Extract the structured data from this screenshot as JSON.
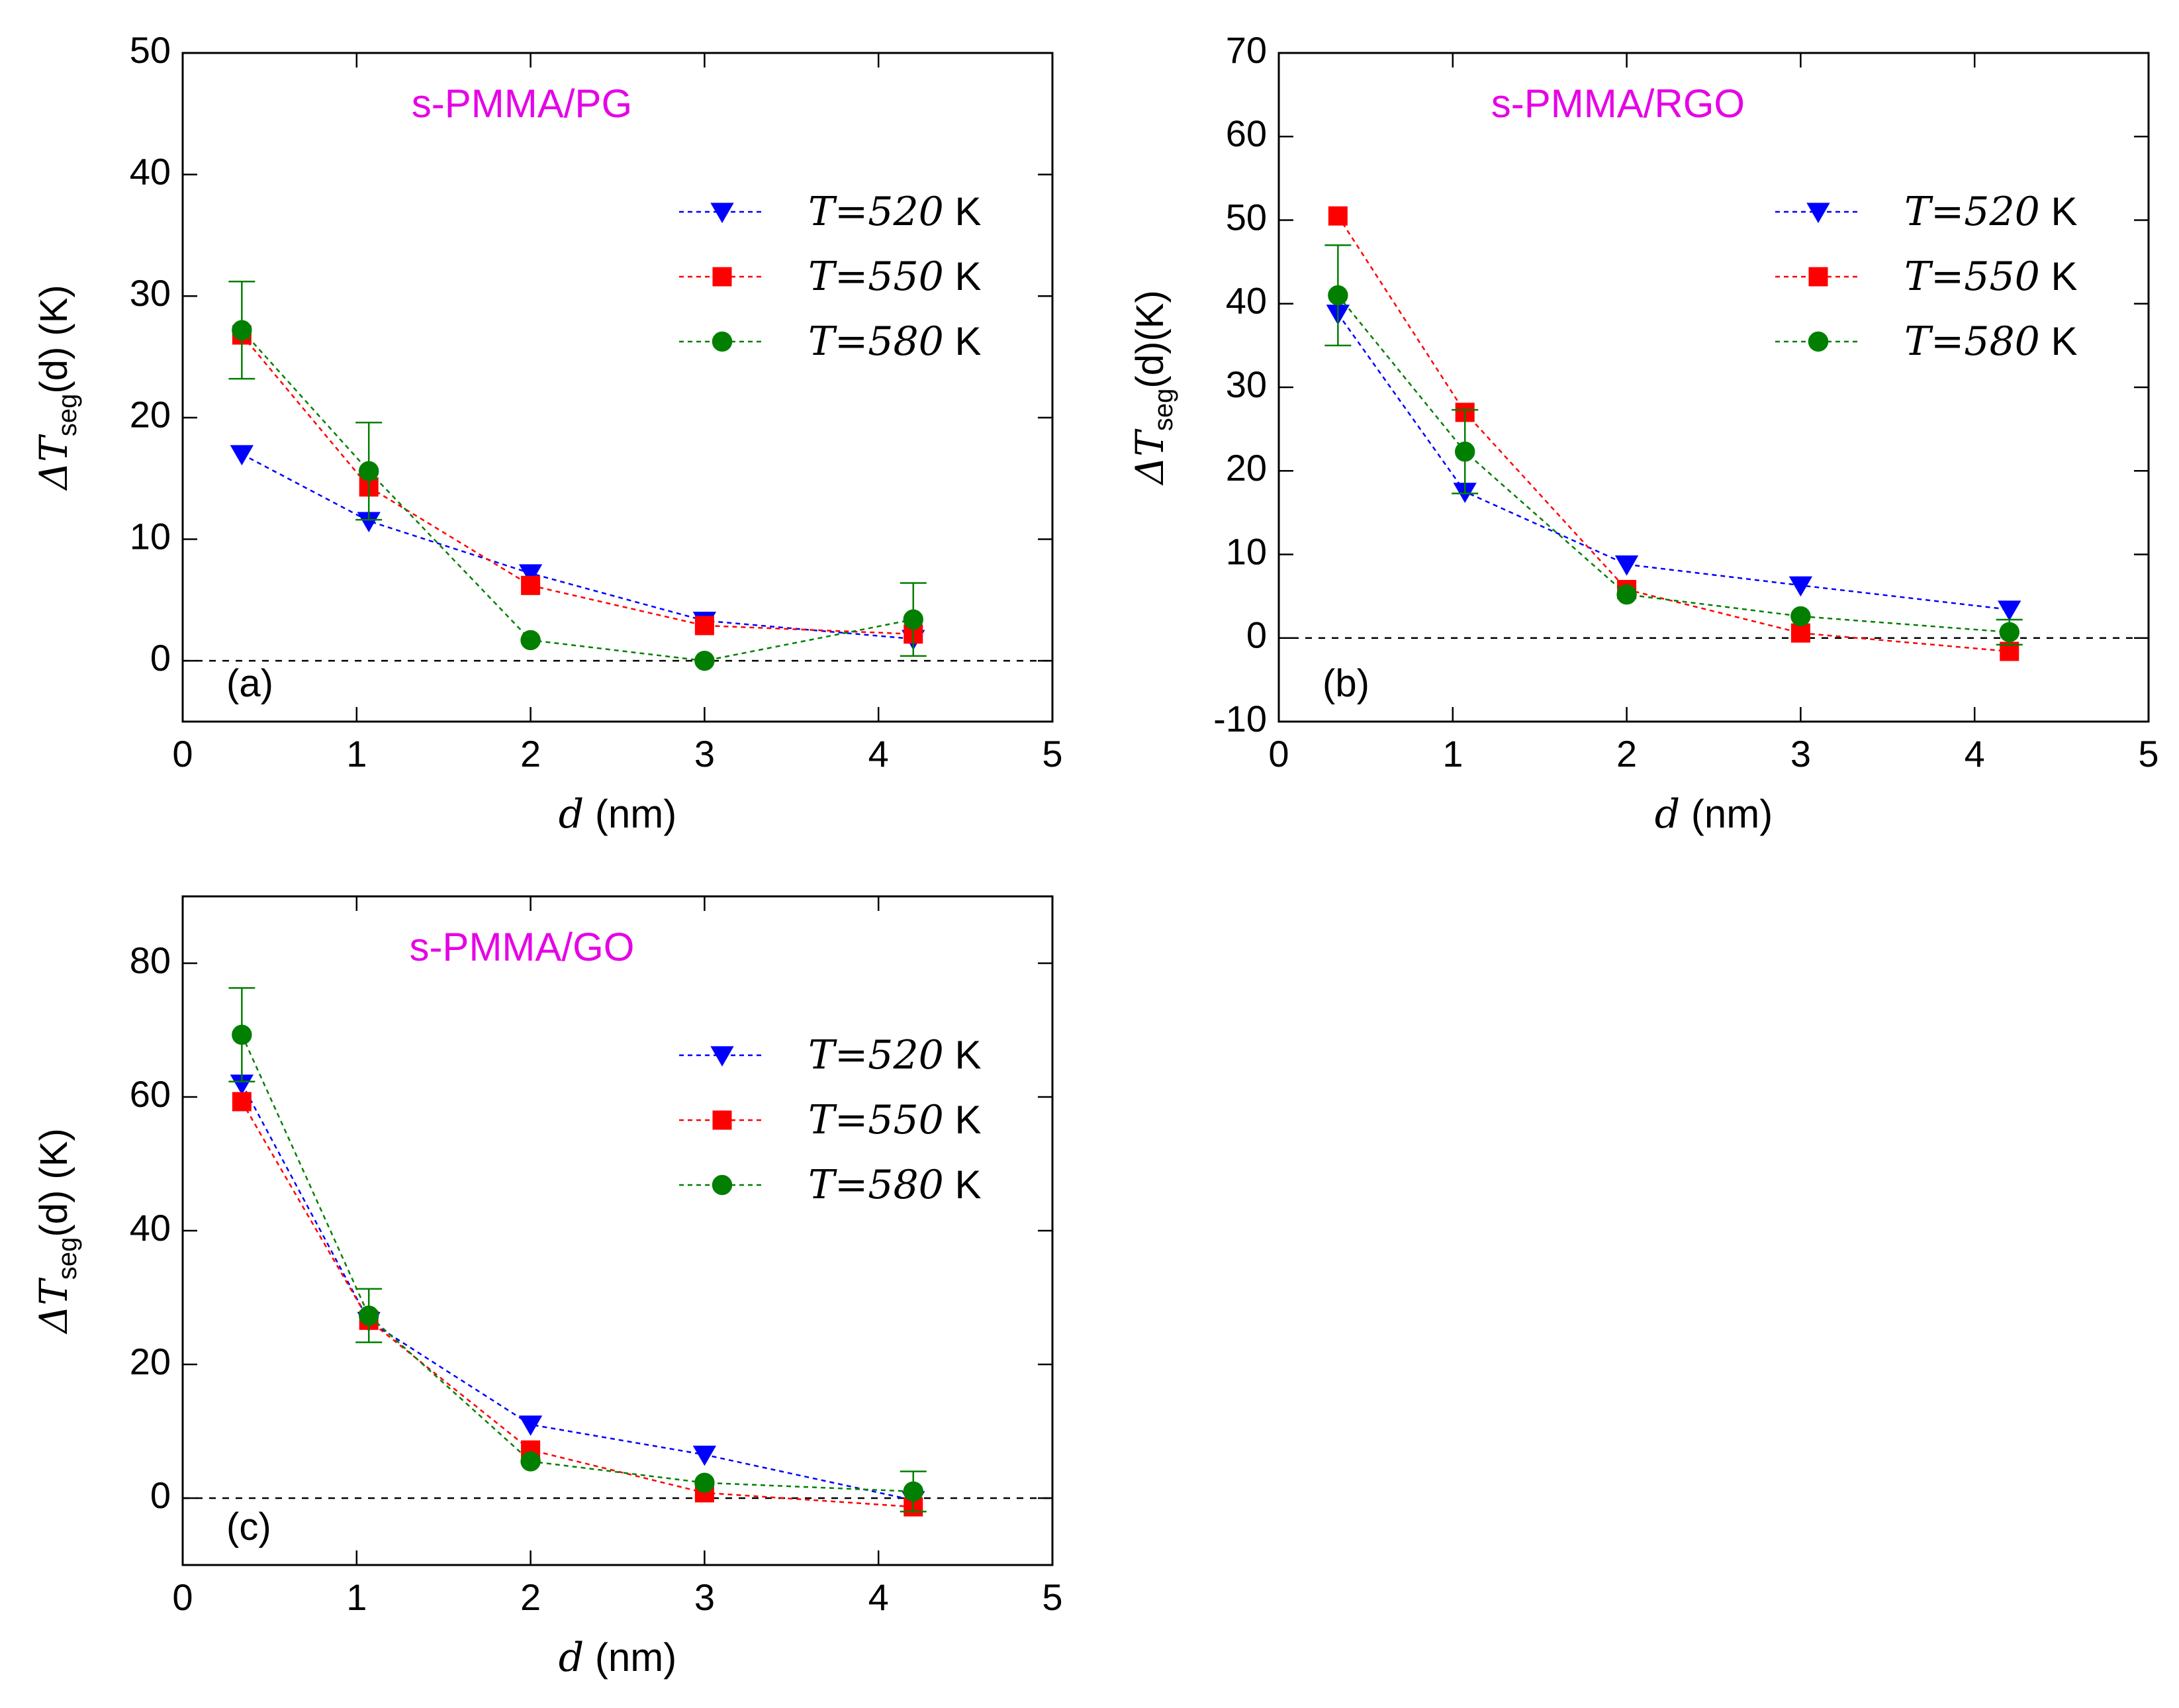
{
  "figure": {
    "panels": [
      {
        "id": "a",
        "panel_label": "(a)",
        "ylabel_main": "ΔT",
        "ylabel_sub": "seg",
        "ylabel_rest": "(d) (K)",
        "xlabel_var": "d",
        "xlabel_rest": " (nm)",
        "annotation": "s-PMMA/PG"
      },
      {
        "id": "b",
        "panel_label": "(b)",
        "ylabel_main": "ΔT",
        "ylabel_sub": "seg",
        "ylabel_rest": "(d)(K)",
        "xlabel_var": "d",
        "xlabel_rest": " (nm)",
        "annotation": "s-PMMA/RGO"
      },
      {
        "id": "c",
        "panel_label": "(c)",
        "ylabel_main": "ΔT",
        "ylabel_sub": "seg",
        "ylabel_rest": "(d) (K)",
        "xlabel_var": "d",
        "xlabel_rest": " (nm)",
        "annotation": "s-PMMA/GO"
      }
    ]
  },
  "chart_data": [
    {
      "type": "line",
      "panel": "(a)",
      "title": "s-PMMA/PG",
      "xlabel": "d (nm)",
      "ylabel": "ΔTseg(d) (K)",
      "xlim": [
        0,
        5
      ],
      "ylim": [
        -5,
        50
      ],
      "xticks": [
        0,
        1,
        2,
        3,
        4,
        5
      ],
      "yticks": [
        0,
        10,
        20,
        30,
        40,
        50
      ],
      "annotation_color": "#e600e6",
      "reference_line_y": 0,
      "legend_position": "upper-right",
      "grid": false,
      "series": [
        {
          "name": "T=520 K",
          "color": "#0000ff",
          "marker": "triangle-down",
          "x": [
            0.34,
            1.07,
            2.0,
            3.0,
            4.2
          ],
          "y": [
            17.0,
            11.5,
            7.2,
            3.3,
            1.8
          ]
        },
        {
          "name": "T=550 K",
          "color": "#ff0000",
          "marker": "square",
          "x": [
            0.34,
            1.07,
            2.0,
            3.0,
            4.2
          ],
          "y": [
            26.8,
            14.3,
            6.2,
            2.9,
            2.2
          ]
        },
        {
          "name": "T=580 K",
          "color": "#007f00",
          "marker": "circle",
          "x": [
            0.34,
            1.07,
            2.0,
            3.0,
            4.2
          ],
          "y": [
            27.2,
            15.6,
            1.7,
            0.0,
            3.4
          ],
          "yerr": [
            4.0,
            4.0,
            null,
            null,
            3.0
          ]
        }
      ]
    },
    {
      "type": "line",
      "panel": "(b)",
      "title": "s-PMMA/RGO",
      "xlabel": "d (nm)",
      "ylabel": "ΔTseg(d)(K)",
      "xlim": [
        0,
        5
      ],
      "ylim": [
        -10,
        70
      ],
      "xticks": [
        0,
        1,
        2,
        3,
        4,
        5
      ],
      "yticks": [
        -10,
        0,
        10,
        20,
        30,
        40,
        50,
        60,
        70
      ],
      "annotation_color": "#e600e6",
      "reference_line_y": 0,
      "legend_position": "upper-right",
      "grid": false,
      "series": [
        {
          "name": "T=520 K",
          "color": "#0000ff",
          "marker": "triangle-down",
          "x": [
            0.34,
            1.07,
            2.0,
            3.0,
            4.2
          ],
          "y": [
            38.8,
            17.5,
            8.8,
            6.3,
            3.4
          ]
        },
        {
          "name": "T=550 K",
          "color": "#ff0000",
          "marker": "square",
          "x": [
            0.34,
            1.07,
            2.0,
            3.0,
            4.2
          ],
          "y": [
            50.5,
            27.0,
            5.8,
            0.6,
            -1.6
          ]
        },
        {
          "name": "T=580 K",
          "color": "#007f00",
          "marker": "circle",
          "x": [
            0.34,
            1.07,
            2.0,
            3.0,
            4.2
          ],
          "y": [
            41.0,
            22.3,
            5.2,
            2.6,
            0.7
          ],
          "yerr": [
            6.0,
            5.0,
            null,
            null,
            1.5
          ]
        }
      ]
    },
    {
      "type": "line",
      "panel": "(c)",
      "title": "s-PMMA/GO",
      "xlabel": "d (nm)",
      "ylabel": "ΔTseg(d) (K)",
      "xlim": [
        0,
        5
      ],
      "ylim": [
        -10,
        90
      ],
      "xticks": [
        0,
        1,
        2,
        3,
        4,
        5
      ],
      "yticks": [
        0,
        20,
        40,
        60,
        80
      ],
      "annotation_color": "#e600e6",
      "reference_line_y": 0,
      "legend_position": "upper-right",
      "grid": false,
      "series": [
        {
          "name": "T=520 K",
          "color": "#0000ff",
          "marker": "triangle-down",
          "x": [
            0.34,
            1.07,
            2.0,
            3.0,
            4.2
          ],
          "y": [
            62.0,
            26.5,
            11.0,
            6.5,
            -0.3
          ]
        },
        {
          "name": "T=550 K",
          "color": "#ff0000",
          "marker": "square",
          "x": [
            0.34,
            1.07,
            2.0,
            3.0,
            4.2
          ],
          "y": [
            59.3,
            26.6,
            7.2,
            0.8,
            -1.3
          ]
        },
        {
          "name": "T=580 K",
          "color": "#007f00",
          "marker": "circle",
          "x": [
            0.34,
            1.07,
            2.0,
            3.0,
            4.2
          ],
          "y": [
            69.3,
            27.3,
            5.5,
            2.3,
            1.0
          ],
          "yerr": [
            7.0,
            4.0,
            null,
            null,
            3.0
          ]
        }
      ]
    }
  ]
}
